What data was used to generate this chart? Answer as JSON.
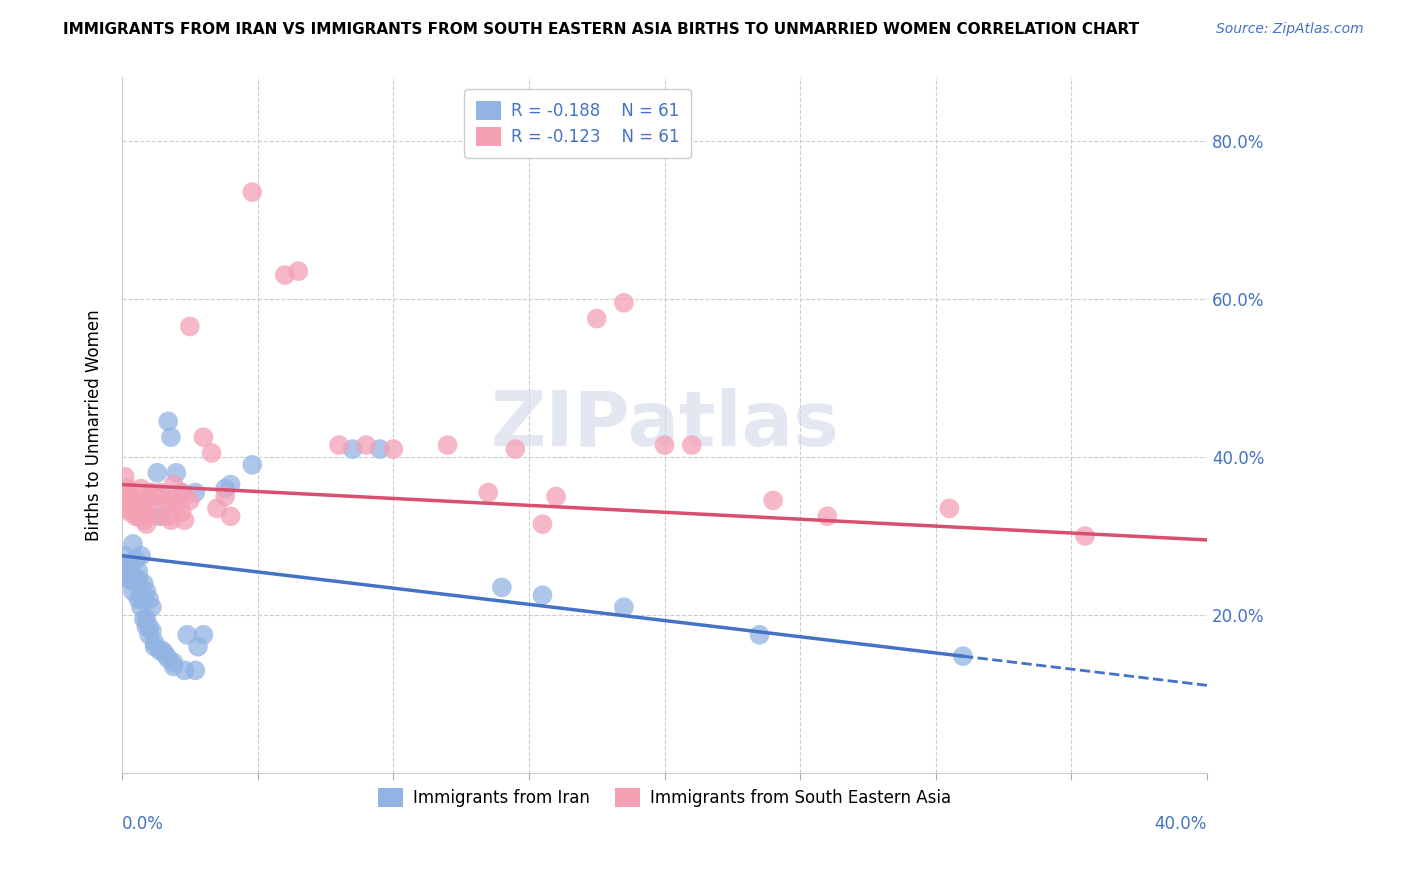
{
  "title": "IMMIGRANTS FROM IRAN VS IMMIGRANTS FROM SOUTH EASTERN ASIA BIRTHS TO UNMARRIED WOMEN CORRELATION CHART",
  "source": "Source: ZipAtlas.com",
  "ylabel": "Births to Unmarried Women",
  "y_ticks": [
    0.0,
    0.2,
    0.4,
    0.6,
    0.8
  ],
  "y_tick_labels": [
    "",
    "20.0%",
    "40.0%",
    "60.0%",
    "80.0%"
  ],
  "x_min": 0.0,
  "x_max": 0.4,
  "y_min": 0.0,
  "y_max": 0.88,
  "legend_iran_R": "R = -0.188",
  "legend_iran_N": "N = 61",
  "legend_sea_R": "R = -0.123",
  "legend_sea_N": "N = 61",
  "iran_color": "#92b4e3",
  "sea_color": "#f4a0b5",
  "iran_line_color": "#4472c4",
  "sea_line_color": "#d94f70",
  "iran_line_start_y": 0.275,
  "iran_line_end_y": 0.148,
  "iran_line_end_x": 0.31,
  "sea_line_start_y": 0.365,
  "sea_line_end_y": 0.295,
  "sea_line_end_x": 0.4,
  "watermark_text": "ZIPatlas",
  "iran_scatter": [
    [
      0.001,
      0.275
    ],
    [
      0.002,
      0.265
    ],
    [
      0.002,
      0.25
    ],
    [
      0.002,
      0.245
    ],
    [
      0.003,
      0.255
    ],
    [
      0.003,
      0.245
    ],
    [
      0.003,
      0.26
    ],
    [
      0.004,
      0.29
    ],
    [
      0.004,
      0.25
    ],
    [
      0.004,
      0.23
    ],
    [
      0.005,
      0.27
    ],
    [
      0.005,
      0.245
    ],
    [
      0.005,
      0.24
    ],
    [
      0.006,
      0.255
    ],
    [
      0.006,
      0.245
    ],
    [
      0.006,
      0.22
    ],
    [
      0.007,
      0.275
    ],
    [
      0.007,
      0.22
    ],
    [
      0.007,
      0.21
    ],
    [
      0.008,
      0.24
    ],
    [
      0.008,
      0.22
    ],
    [
      0.008,
      0.195
    ],
    [
      0.009,
      0.23
    ],
    [
      0.009,
      0.195
    ],
    [
      0.009,
      0.185
    ],
    [
      0.01,
      0.22
    ],
    [
      0.01,
      0.185
    ],
    [
      0.01,
      0.175
    ],
    [
      0.011,
      0.21
    ],
    [
      0.011,
      0.18
    ],
    [
      0.012,
      0.165
    ],
    [
      0.012,
      0.16
    ],
    [
      0.013,
      0.38
    ],
    [
      0.013,
      0.35
    ],
    [
      0.014,
      0.325
    ],
    [
      0.014,
      0.155
    ],
    [
      0.015,
      0.155
    ],
    [
      0.016,
      0.15
    ],
    [
      0.017,
      0.445
    ],
    [
      0.017,
      0.145
    ],
    [
      0.018,
      0.425
    ],
    [
      0.019,
      0.14
    ],
    [
      0.019,
      0.135
    ],
    [
      0.02,
      0.38
    ],
    [
      0.022,
      0.355
    ],
    [
      0.023,
      0.13
    ],
    [
      0.024,
      0.175
    ],
    [
      0.027,
      0.355
    ],
    [
      0.027,
      0.13
    ],
    [
      0.028,
      0.16
    ],
    [
      0.03,
      0.175
    ],
    [
      0.038,
      0.36
    ],
    [
      0.04,
      0.365
    ],
    [
      0.048,
      0.39
    ],
    [
      0.085,
      0.41
    ],
    [
      0.095,
      0.41
    ],
    [
      0.14,
      0.235
    ],
    [
      0.155,
      0.225
    ],
    [
      0.185,
      0.21
    ],
    [
      0.235,
      0.175
    ],
    [
      0.31,
      0.148
    ]
  ],
  "sea_scatter": [
    [
      0.001,
      0.375
    ],
    [
      0.002,
      0.36
    ],
    [
      0.002,
      0.345
    ],
    [
      0.002,
      0.335
    ],
    [
      0.003,
      0.355
    ],
    [
      0.003,
      0.34
    ],
    [
      0.003,
      0.33
    ],
    [
      0.004,
      0.345
    ],
    [
      0.004,
      0.335
    ],
    [
      0.005,
      0.34
    ],
    [
      0.005,
      0.325
    ],
    [
      0.006,
      0.335
    ],
    [
      0.006,
      0.325
    ],
    [
      0.007,
      0.36
    ],
    [
      0.007,
      0.33
    ],
    [
      0.008,
      0.345
    ],
    [
      0.008,
      0.32
    ],
    [
      0.009,
      0.34
    ],
    [
      0.009,
      0.315
    ],
    [
      0.01,
      0.355
    ],
    [
      0.01,
      0.33
    ],
    [
      0.011,
      0.355
    ],
    [
      0.013,
      0.35
    ],
    [
      0.014,
      0.325
    ],
    [
      0.014,
      0.355
    ],
    [
      0.017,
      0.345
    ],
    [
      0.017,
      0.325
    ],
    [
      0.018,
      0.345
    ],
    [
      0.018,
      0.32
    ],
    [
      0.019,
      0.365
    ],
    [
      0.02,
      0.34
    ],
    [
      0.022,
      0.355
    ],
    [
      0.022,
      0.33
    ],
    [
      0.023,
      0.35
    ],
    [
      0.023,
      0.32
    ],
    [
      0.025,
      0.345
    ],
    [
      0.025,
      0.565
    ],
    [
      0.03,
      0.425
    ],
    [
      0.033,
      0.405
    ],
    [
      0.035,
      0.335
    ],
    [
      0.038,
      0.35
    ],
    [
      0.04,
      0.325
    ],
    [
      0.048,
      0.735
    ],
    [
      0.06,
      0.63
    ],
    [
      0.065,
      0.635
    ],
    [
      0.08,
      0.415
    ],
    [
      0.09,
      0.415
    ],
    [
      0.1,
      0.41
    ],
    [
      0.12,
      0.415
    ],
    [
      0.135,
      0.355
    ],
    [
      0.145,
      0.41
    ],
    [
      0.155,
      0.315
    ],
    [
      0.16,
      0.35
    ],
    [
      0.175,
      0.575
    ],
    [
      0.185,
      0.595
    ],
    [
      0.2,
      0.415
    ],
    [
      0.21,
      0.415
    ],
    [
      0.24,
      0.345
    ],
    [
      0.26,
      0.325
    ],
    [
      0.305,
      0.335
    ],
    [
      0.355,
      0.3
    ]
  ]
}
